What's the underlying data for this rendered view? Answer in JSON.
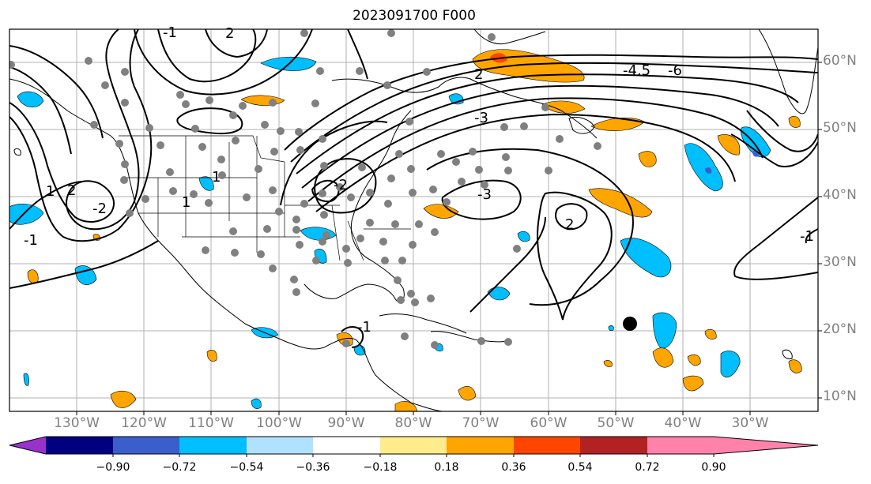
{
  "title": "2023091700 F000",
  "lat_labels": [
    "60°N",
    "50°N",
    "40°N",
    "30°N",
    "20°N",
    "10°N"
  ],
  "lon_labels": [
    "130°W",
    "120°W",
    "110°W",
    "100°W",
    "90°W",
    "80°W",
    "70°W",
    "60°W",
    "50°W",
    "40°W",
    "30°W"
  ],
  "contour_labels": [
    "1",
    "2",
    "-2",
    "-1",
    "2",
    "1",
    "2",
    "-3",
    "-4.5",
    "-6",
    "-3",
    "2",
    "-2",
    "-1",
    "-1",
    "1",
    "-1"
  ],
  "colorbar": {
    "ticks": [
      "−0.90",
      "−0.72",
      "−0.54",
      "−0.36",
      "−0.18",
      "0.18",
      "0.36",
      "0.54",
      "0.72",
      "0.90"
    ],
    "colors": [
      "#9932cc",
      "#000080",
      "#3a5fcd",
      "#00bfff",
      "#b0e2ff",
      "#ffffff",
      "#ffec8b",
      "#ffa500",
      "#ff4500",
      "#b22222",
      "#ff82ab"
    ]
  },
  "colors": {
    "positive_fill": "#ffa500",
    "strong_positive_fill": "#ff4500",
    "negative_fill": "#00bfff",
    "strong_negative_fill": "#3a5fcd",
    "station_dot": "#808080",
    "storm_marker": "#000000"
  }
}
